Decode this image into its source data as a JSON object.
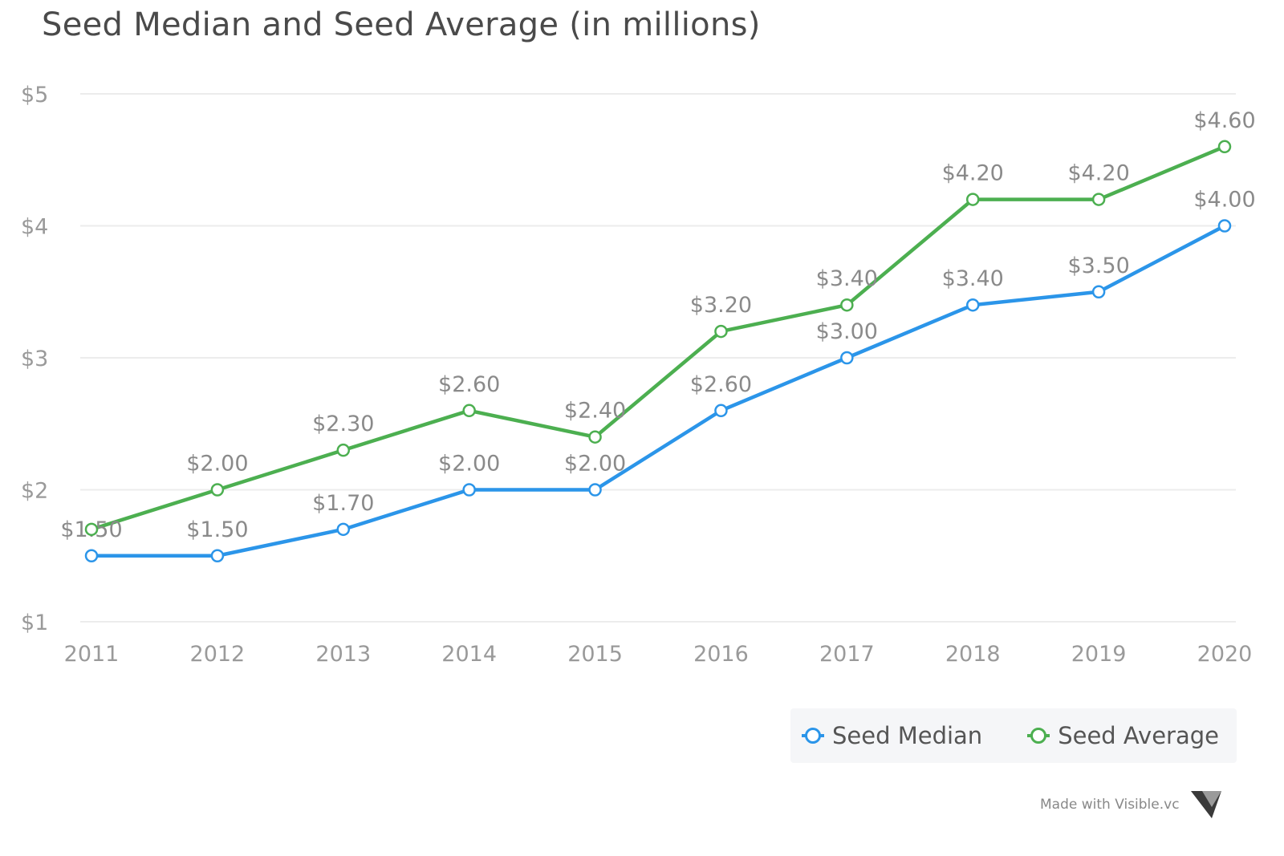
{
  "chart_data": {
    "type": "line",
    "title": "Seed Median and Seed Average (in millions)",
    "categories": [
      "2011",
      "2012",
      "2013",
      "2014",
      "2015",
      "2016",
      "2017",
      "2018",
      "2019",
      "2020"
    ],
    "ylim": [
      1,
      5
    ],
    "yticks": [
      1,
      2,
      3,
      4,
      5
    ],
    "ytick_labels": [
      "$1",
      "$2",
      "$3",
      "$4",
      "$5"
    ],
    "xlabel": "",
    "ylabel": "",
    "grid": true,
    "legend_position": "bottom-right",
    "series": [
      {
        "name": "Seed Median",
        "color": "#2b95e9",
        "values": [
          1.5,
          1.5,
          1.7,
          2.0,
          2.0,
          2.6,
          3.0,
          3.4,
          3.5,
          4.0
        ],
        "labels": [
          "$1.50",
          "$1.50",
          "$1.70",
          "$2.00",
          "$2.00",
          "$2.60",
          "$3.00",
          "$3.40",
          "$3.50",
          "$4.00"
        ]
      },
      {
        "name": "Seed Average",
        "color": "#4caf50",
        "values": [
          1.7,
          2.0,
          2.3,
          2.6,
          2.4,
          3.2,
          3.4,
          4.2,
          4.2,
          4.6
        ],
        "labels": [
          "",
          "$2.00",
          "$2.30",
          "$2.60",
          "$2.40",
          "$3.20",
          "$3.40",
          "$4.20",
          "$4.20",
          "$4.60"
        ]
      }
    ]
  },
  "watermark": {
    "text": "Made with Visible.vc",
    "logo_icon": "visible-logo-icon"
  }
}
